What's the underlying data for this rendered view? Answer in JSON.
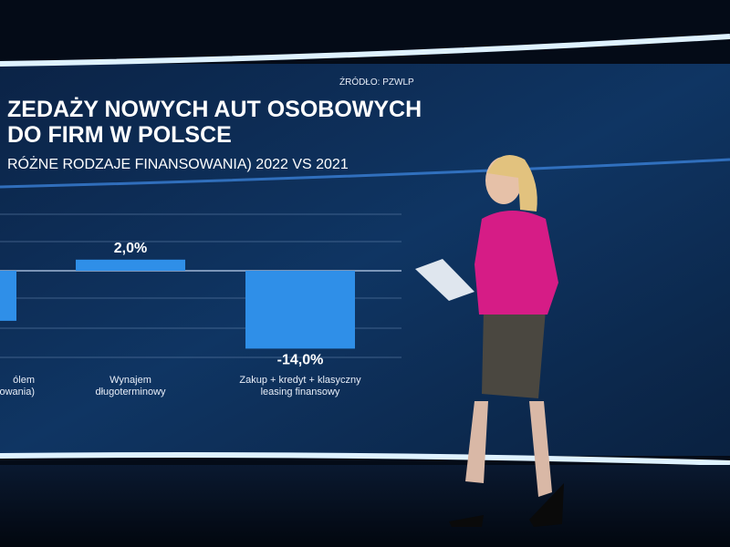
{
  "chart_data": {
    "type": "bar",
    "source": "ŹRÓDŁO: PZWLP",
    "title": [
      "ZEDAŻY NOWYCH AUT OSOBOWYCH",
      "DO FIRM W POLSCE"
    ],
    "subtitle": "RÓŻNE RODZAJE FINANSOWANIA) 2022 VS 2021",
    "categories": [
      [
        "ólem",
        "owania)"
      ],
      [
        "Wynajem",
        "długoterminowy"
      ],
      [
        "Zakup + kredyt + klasyczny",
        "leasing finansowy"
      ]
    ],
    "values": [
      -9,
      2,
      -14
    ],
    "value_labels": [
      null,
      "2,0%",
      "-14,0%"
    ],
    "color": "#2f8fe8"
  }
}
